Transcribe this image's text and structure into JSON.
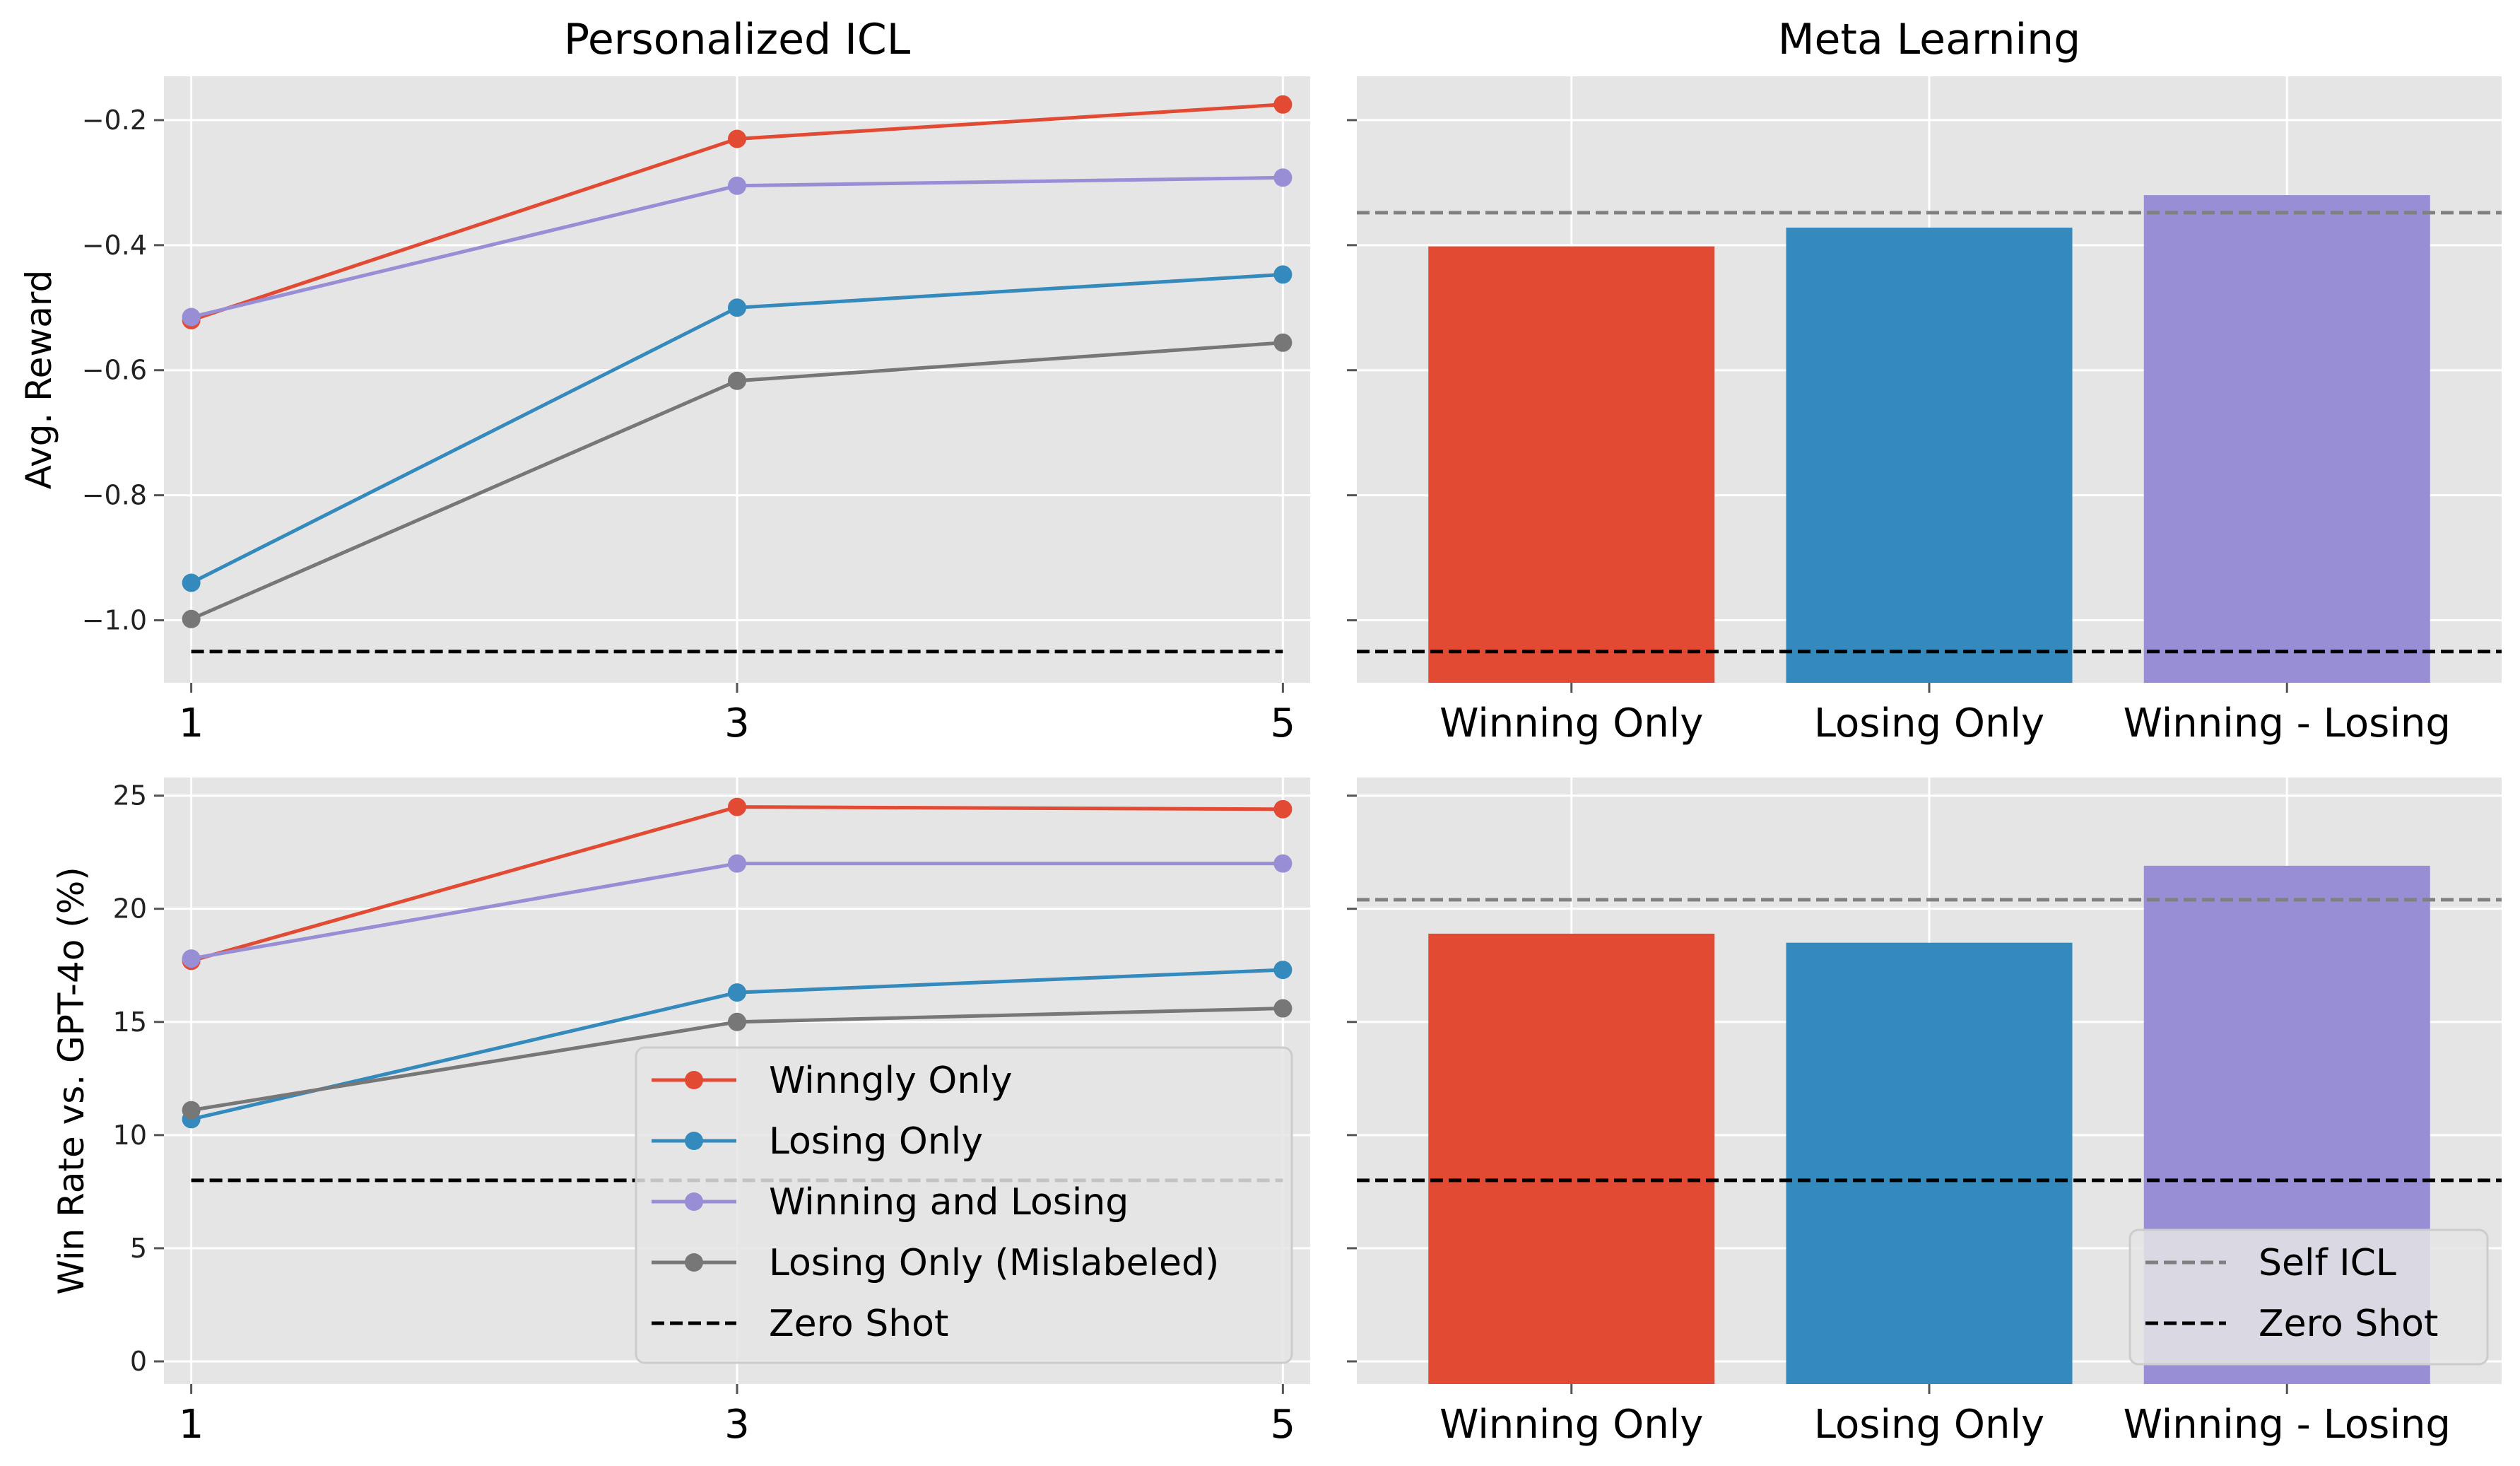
{
  "chart_data": [
    {
      "type": "line",
      "title": "Personalized ICL",
      "xlabel": "",
      "ylabel": "Avg. Reward",
      "x": [
        1,
        3,
        5
      ],
      "xticks": [
        "1",
        "3",
        "5"
      ],
      "yticks": [
        {
          "value": -1.0,
          "label": "−1.0"
        },
        {
          "value": -0.8,
          "label": "−0.8"
        },
        {
          "value": -0.6,
          "label": "−0.6"
        },
        {
          "value": -0.4,
          "label": "−0.4"
        },
        {
          "value": -0.2,
          "label": "−0.2"
        }
      ],
      "xlim": [
        0.9,
        5.1
      ],
      "ylim": [
        -1.1,
        -0.13
      ],
      "grid": true,
      "series": [
        {
          "name": "Winngly Only",
          "color": "#E24A33",
          "values": [
            -0.52,
            -0.23,
            -0.175
          ]
        },
        {
          "name": "Losing Only",
          "color": "#348ABD",
          "values": [
            -0.94,
            -0.5,
            -0.447
          ]
        },
        {
          "name": "Winning and Losing",
          "color": "#988ED5",
          "values": [
            -0.515,
            -0.305,
            -0.292
          ]
        },
        {
          "name": "Losing Only (Mislabeled)",
          "color": "#777777",
          "values": [
            -0.998,
            -0.617,
            -0.556
          ]
        }
      ],
      "reference_lines": [
        {
          "name": "Zero Shot",
          "value": -1.05,
          "color": "#000000"
        }
      ]
    },
    {
      "type": "bar",
      "title": "Meta Learning",
      "categories": [
        "Winning Only",
        "Losing Only",
        "Winning - Losing"
      ],
      "colors": [
        "#E24A33",
        "#348ABD",
        "#988ED5"
      ],
      "values": [
        -0.402,
        -0.372,
        -0.32
      ],
      "ylim": [
        -1.1,
        -0.13
      ],
      "yticks": [
        -1.0,
        -0.8,
        -0.6,
        -0.4,
        -0.2
      ],
      "grid": true,
      "reference_lines": [
        {
          "name": "Self ICL",
          "value": -0.348,
          "color": "#808080"
        },
        {
          "name": "Zero Shot",
          "value": -1.05,
          "color": "#000000"
        }
      ]
    },
    {
      "type": "line",
      "title": "",
      "xlabel": "",
      "ylabel": "Win Rate vs. GPT-4o (%)",
      "x": [
        1,
        3,
        5
      ],
      "xticks": [
        "1",
        "3",
        "5"
      ],
      "yticks": [
        {
          "value": 0,
          "label": "0"
        },
        {
          "value": 5,
          "label": "5"
        },
        {
          "value": 10,
          "label": "10"
        },
        {
          "value": 15,
          "label": "15"
        },
        {
          "value": 20,
          "label": "20"
        },
        {
          "value": 25,
          "label": "25"
        }
      ],
      "xlim": [
        0.9,
        5.1
      ],
      "ylim": [
        -1.0,
        25.8
      ],
      "grid": true,
      "series": [
        {
          "name": "Winngly Only",
          "color": "#E24A33",
          "values": [
            17.7,
            24.5,
            24.4
          ]
        },
        {
          "name": "Losing Only",
          "color": "#348ABD",
          "values": [
            10.7,
            16.3,
            17.3
          ]
        },
        {
          "name": "Winning and Losing",
          "color": "#988ED5",
          "values": [
            17.8,
            22.0,
            22.0
          ]
        },
        {
          "name": "Losing Only (Mislabeled)",
          "color": "#777777",
          "values": [
            11.1,
            15.0,
            15.6
          ]
        }
      ],
      "reference_lines": [
        {
          "name": "Zero Shot",
          "value": 8.0,
          "color": "#000000"
        }
      ],
      "legend": "lower-right"
    },
    {
      "type": "bar",
      "title": "",
      "categories": [
        "Winning Only",
        "Losing Only",
        "Winning - Losing"
      ],
      "colors": [
        "#E24A33",
        "#348ABD",
        "#988ED5"
      ],
      "values": [
        18.9,
        18.5,
        21.9
      ],
      "ylim": [
        -1.0,
        25.8
      ],
      "yticks": [
        0,
        5,
        10,
        15,
        20,
        25
      ],
      "grid": true,
      "reference_lines": [
        {
          "name": "Self ICL",
          "value": 20.4,
          "color": "#808080"
        },
        {
          "name": "Zero Shot",
          "value": 8.0,
          "color": "#000000"
        }
      ],
      "legend": "lower-right"
    }
  ]
}
